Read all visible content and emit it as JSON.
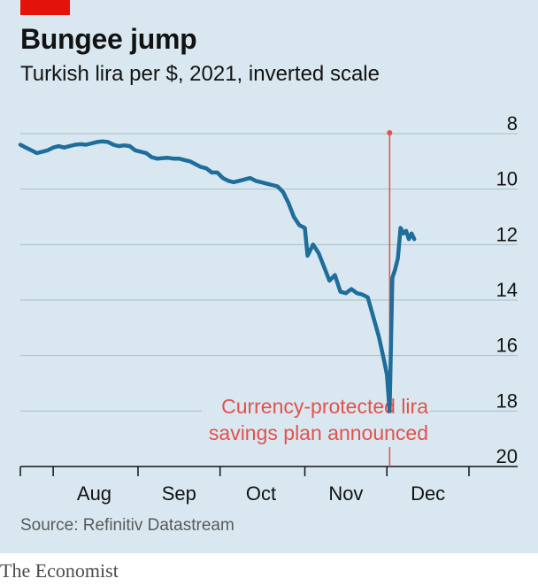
{
  "header": {
    "title": "Bungee jump",
    "subtitle": "Turkish lira per $, 2021, inverted scale"
  },
  "footer": {
    "source": "Source: Refinitiv Datastream",
    "brand": "The Economist"
  },
  "colors": {
    "background": "#d9e8f0",
    "line": "#1f6d9b",
    "annotation": "#e3514c",
    "accent": "#e3120b"
  },
  "chart_data": {
    "type": "line",
    "title": "Bungee jump",
    "subtitle": "Turkish lira per $, 2021, inverted scale",
    "y_inverted": true,
    "ylim": [
      8,
      20
    ],
    "y_ticks": [
      8,
      10,
      12,
      14,
      16,
      18,
      20
    ],
    "y_tick_labels": [
      "8",
      "10",
      "12",
      "14",
      "16",
      "18",
      "20"
    ],
    "xlim": [
      "2021-07-20",
      "2021-12-31"
    ],
    "x_month_boundaries": [
      "2021-08-01",
      "2021-09-01",
      "2021-10-01",
      "2021-11-01",
      "2021-12-01",
      "2021-12-31"
    ],
    "x_labels": [
      {
        "label": "Aug",
        "date": "2021-08-16"
      },
      {
        "label": "Sep",
        "date": "2021-09-16"
      },
      {
        "label": "Oct",
        "date": "2021-10-16"
      },
      {
        "label": "Nov",
        "date": "2021-11-16"
      },
      {
        "label": "Dec",
        "date": "2021-12-16"
      }
    ],
    "grid": true,
    "series": [
      {
        "points": [
          [
            "2021-07-20",
            8.4
          ],
          [
            "2021-07-22",
            8.5
          ],
          [
            "2021-07-24",
            8.6
          ],
          [
            "2021-07-26",
            8.7
          ],
          [
            "2021-07-28",
            8.65
          ],
          [
            "2021-07-30",
            8.6
          ],
          [
            "2021-08-01",
            8.5
          ],
          [
            "2021-08-03",
            8.45
          ],
          [
            "2021-08-05",
            8.5
          ],
          [
            "2021-08-07",
            8.45
          ],
          [
            "2021-08-09",
            8.4
          ],
          [
            "2021-08-11",
            8.38
          ],
          [
            "2021-08-13",
            8.4
          ],
          [
            "2021-08-15",
            8.35
          ],
          [
            "2021-08-17",
            8.3
          ],
          [
            "2021-08-19",
            8.28
          ],
          [
            "2021-08-21",
            8.3
          ],
          [
            "2021-08-23",
            8.4
          ],
          [
            "2021-08-25",
            8.45
          ],
          [
            "2021-08-27",
            8.42
          ],
          [
            "2021-08-29",
            8.45
          ],
          [
            "2021-08-31",
            8.6
          ],
          [
            "2021-09-02",
            8.65
          ],
          [
            "2021-09-04",
            8.7
          ],
          [
            "2021-09-06",
            8.85
          ],
          [
            "2021-09-08",
            8.9
          ],
          [
            "2021-09-10",
            8.88
          ],
          [
            "2021-09-12",
            8.87
          ],
          [
            "2021-09-14",
            8.9
          ],
          [
            "2021-09-16",
            8.9
          ],
          [
            "2021-09-18",
            8.95
          ],
          [
            "2021-09-20",
            9.0
          ],
          [
            "2021-09-22",
            9.1
          ],
          [
            "2021-09-24",
            9.2
          ],
          [
            "2021-09-26",
            9.25
          ],
          [
            "2021-09-28",
            9.4
          ],
          [
            "2021-09-30",
            9.4
          ],
          [
            "2021-10-02",
            9.6
          ],
          [
            "2021-10-04",
            9.7
          ],
          [
            "2021-10-06",
            9.75
          ],
          [
            "2021-10-08",
            9.7
          ],
          [
            "2021-10-10",
            9.65
          ],
          [
            "2021-10-12",
            9.6
          ],
          [
            "2021-10-14",
            9.7
          ],
          [
            "2021-10-16",
            9.75
          ],
          [
            "2021-10-18",
            9.8
          ],
          [
            "2021-10-20",
            9.85
          ],
          [
            "2021-10-22",
            9.9
          ],
          [
            "2021-10-24",
            10.1
          ],
          [
            "2021-10-26",
            10.5
          ],
          [
            "2021-10-28",
            11.0
          ],
          [
            "2021-10-30",
            11.3
          ],
          [
            "2021-11-01",
            11.4
          ],
          [
            "2021-11-02",
            12.4
          ],
          [
            "2021-11-04",
            12.0
          ],
          [
            "2021-11-06",
            12.3
          ],
          [
            "2021-11-08",
            12.8
          ],
          [
            "2021-11-10",
            13.3
          ],
          [
            "2021-11-12",
            13.1
          ],
          [
            "2021-11-14",
            13.7
          ],
          [
            "2021-11-16",
            13.75
          ],
          [
            "2021-11-18",
            13.6
          ],
          [
            "2021-11-20",
            13.75
          ],
          [
            "2021-11-22",
            13.8
          ],
          [
            "2021-11-24",
            13.9
          ],
          [
            "2021-11-26",
            14.6
          ],
          [
            "2021-11-28",
            15.3
          ],
          [
            "2021-11-30",
            16.2
          ],
          [
            "2021-12-01",
            16.7
          ],
          [
            "2021-12-02",
            18.0
          ],
          [
            "2021-12-03",
            13.2
          ],
          [
            "2021-12-04",
            12.9
          ],
          [
            "2021-12-05",
            12.5
          ],
          [
            "2021-12-06",
            11.4
          ],
          [
            "2021-12-07",
            11.6
          ],
          [
            "2021-12-08",
            11.5
          ],
          [
            "2021-12-09",
            11.8
          ],
          [
            "2021-12-10",
            11.6
          ],
          [
            "2021-12-11",
            11.8
          ]
        ]
      }
    ],
    "annotations": [
      {
        "date": "2021-12-02",
        "lines": [
          "Currency-protected lira",
          "savings plan announced"
        ]
      }
    ]
  }
}
